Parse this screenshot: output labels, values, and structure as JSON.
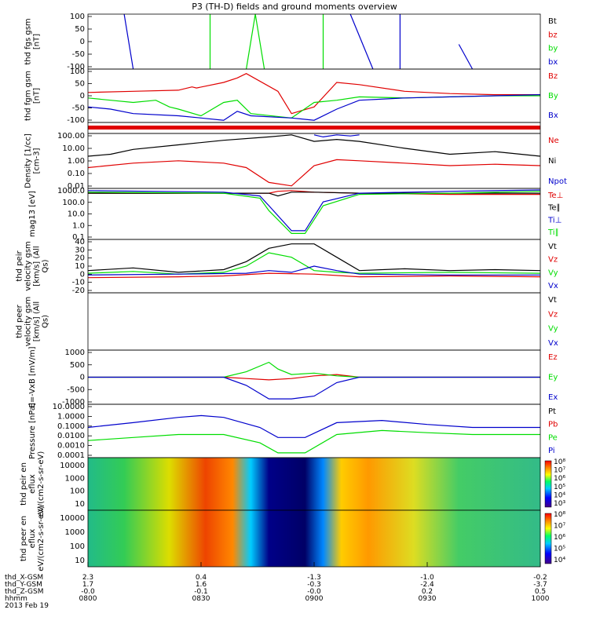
{
  "title": "P3 (TH-D) fields and ground moments overview",
  "colors": {
    "black": "#000000",
    "red": "#e00000",
    "green": "#00dd00",
    "blue": "#0000cc"
  },
  "chart_data": {
    "type": "line",
    "x_time_labels": [
      "0800",
      "0830",
      "0900",
      "0930",
      "1000"
    ],
    "panels": [
      {
        "ylabel": "thd fgs gsm [nT]",
        "ylim": [
          -100,
          100
        ],
        "ticks": [
          "100",
          "50",
          "0",
          "-50",
          "-100"
        ],
        "legend": [
          {
            "label": "Bt",
            "color": "black"
          },
          {
            "label": "bz",
            "color": "red"
          },
          {
            "label": "by",
            "color": "green"
          },
          {
            "label": "bx",
            "color": "blue"
          }
        ],
        "series": [
          {
            "color": "blue",
            "x": [
              0.08,
              0.1
            ],
            "y": [
              100,
              -100
            ]
          },
          {
            "color": "green",
            "x": [
              0.27,
              0.27
            ],
            "y": [
              -100,
              100
            ]
          },
          {
            "color": "green",
            "x": [
              0.35,
              0.37,
              0.39
            ],
            "y": [
              -100,
              100,
              -100
            ]
          },
          {
            "color": "green",
            "x": [
              0.52,
              0.52
            ],
            "y": [
              -100,
              100
            ]
          },
          {
            "color": "blue",
            "x": [
              0.58,
              0.63
            ],
            "y": [
              100,
              -100
            ]
          },
          {
            "color": "blue",
            "x": [
              0.82,
              0.85
            ],
            "y": [
              -10,
              -100
            ]
          },
          {
            "color": "blue",
            "x": [
              0.69,
              0.69
            ],
            "y": [
              -100,
              100
            ]
          }
        ]
      },
      {
        "ylabel": "thd fgm gsm [nT]",
        "ylim": [
          -120,
          120
        ],
        "ticks": [
          "100",
          "50",
          "0",
          "-50",
          "-100"
        ],
        "legend": [
          {
            "label": "Bz",
            "color": "red"
          },
          {
            "label": "By",
            "color": "green"
          },
          {
            "label": "Bx",
            "color": "blue"
          }
        ],
        "series": [
          {
            "color": "red",
            "x": [
              0,
              0.1,
              0.2,
              0.23,
              0.24,
              0.3,
              0.33,
              0.35,
              0.42,
              0.45,
              0.5,
              0.55,
              0.6,
              0.7,
              0.8,
              0.9,
              1
            ],
            "y": [
              15,
              20,
              25,
              40,
              35,
              60,
              80,
              100,
              20,
              -80,
              -50,
              60,
              50,
              20,
              10,
              5,
              5
            ]
          },
          {
            "color": "green",
            "x": [
              0,
              0.05,
              0.1,
              0.15,
              0.18,
              0.2,
              0.25,
              0.3,
              0.33,
              0.36,
              0.45,
              0.5,
              0.55,
              0.6,
              0.7,
              0.8,
              0.9,
              1
            ],
            "y": [
              -10,
              -20,
              -30,
              -20,
              -50,
              -60,
              -90,
              -30,
              -20,
              -80,
              -100,
              -30,
              -20,
              -5,
              -10,
              -5,
              0,
              0
            ]
          },
          {
            "color": "blue",
            "x": [
              0,
              0.05,
              0.1,
              0.2,
              0.25,
              0.3,
              0.33,
              0.36,
              0.45,
              0.5,
              0.55,
              0.6,
              0.7,
              0.8,
              0.9,
              1
            ],
            "y": [
              -50,
              -60,
              -80,
              -90,
              -100,
              -110,
              -70,
              -90,
              -100,
              -110,
              -60,
              -20,
              -10,
              -5,
              0,
              5
            ]
          }
        ]
      },
      {
        "ylabel": "",
        "ylim": [
          0,
          1
        ],
        "ticks": [],
        "legend": [],
        "series": []
      },
      {
        "ylabel": "Density [1/cc] [cm-3]",
        "ylim": [
          0.003,
          200
        ],
        "log": true,
        "ticks": [
          "100.00",
          "10.00",
          "1.00",
          "0.10",
          "0.01"
        ],
        "legend": [
          {
            "label": "Ne",
            "color": "red"
          },
          {
            "label": "Ni",
            "color": "black"
          },
          {
            "label": "Npot",
            "color": "blue"
          }
        ],
        "series": [
          {
            "color": "black",
            "x": [
              0,
              0.05,
              0.1,
              0.2,
              0.3,
              0.4,
              0.45,
              0.5,
              0.55,
              0.6,
              0.7,
              0.8,
              0.9,
              1
            ],
            "y": [
              2,
              3,
              8,
              20,
              50,
              100,
              150,
              40,
              60,
              40,
              10,
              3,
              5,
              2
            ]
          },
          {
            "color": "red",
            "x": [
              0,
              0.1,
              0.2,
              0.3,
              0.35,
              0.4,
              0.45,
              0.5,
              0.55,
              0.6,
              0.7,
              0.8,
              0.9,
              1
            ],
            "y": [
              0.2,
              0.5,
              0.8,
              0.5,
              0.2,
              0.01,
              0.005,
              0.3,
              1,
              0.8,
              0.5,
              0.3,
              0.4,
              0.3
            ]
          },
          {
            "color": "blue",
            "x": [
              0.5,
              0.52,
              0.55,
              0.58,
              0.6
            ],
            "y": [
              150,
              100,
              150,
              120,
              150
            ]
          }
        ]
      },
      {
        "ylabel": "mag13 [eV]",
        "ylim": [
          0.1,
          1200
        ],
        "log": true,
        "ticks": [
          "1000.0",
          "100.0",
          "10.0",
          "1.0",
          "0.1"
        ],
        "legend": [
          {
            "label": "Te⊥",
            "color": "red"
          },
          {
            "label": "Te∥",
            "color": "black"
          },
          {
            "label": "Ti⊥",
            "color": "blue"
          },
          {
            "label": "Ti∥",
            "color": "green"
          }
        ],
        "series": [
          {
            "color": "red",
            "x": [
              0,
              0.3,
              0.4,
              0.42,
              0.45,
              0.5,
              0.6,
              0.8,
              1
            ],
            "y": [
              500,
              500,
              500,
              700,
              800,
              600,
              500,
              400,
              400
            ]
          },
          {
            "color": "black",
            "x": [
              0,
              0.3,
              0.4,
              0.42,
              0.45,
              0.5,
              0.6,
              0.8,
              1
            ],
            "y": [
              500,
              500,
              500,
              300,
              600,
              600,
              500,
              500,
              500
            ]
          },
          {
            "color": "blue",
            "x": [
              0,
              0.3,
              0.38,
              0.4,
              0.45,
              0.48,
              0.52,
              0.6,
              0.8,
              1
            ],
            "y": [
              800,
              600,
              300,
              50,
              0.5,
              0.5,
              100,
              500,
              700,
              900
            ]
          },
          {
            "color": "green",
            "x": [
              0,
              0.3,
              0.38,
              0.4,
              0.45,
              0.48,
              0.52,
              0.6,
              0.8,
              1
            ],
            "y": [
              600,
              500,
              200,
              20,
              0.3,
              0.3,
              50,
              400,
              500,
              700
            ]
          }
        ]
      },
      {
        "ylabel": "thd peir velocity gsm [km/s] (All Qs)",
        "ylim": [
          -20,
          40
        ],
        "ticks": [
          "40",
          "30",
          "20",
          "10",
          "0",
          "-10",
          "-20"
        ],
        "legend": [
          {
            "label": "Vt",
            "color": "black"
          },
          {
            "label": "Vz",
            "color": "red"
          },
          {
            "label": "Vy",
            "color": "green"
          },
          {
            "label": "Vx",
            "color": "blue"
          }
        ],
        "series": [
          {
            "color": "black",
            "x": [
              0,
              0.1,
              0.2,
              0.3,
              0.35,
              0.4,
              0.45,
              0.5,
              0.55,
              0.6,
              0.7,
              0.8,
              0.9,
              1
            ],
            "y": [
              5,
              8,
              3,
              6,
              15,
              30,
              35,
              35,
              20,
              5,
              7,
              5,
              6,
              5
            ]
          },
          {
            "color": "red",
            "x": [
              0,
              0.2,
              0.3,
              0.4,
              0.5,
              0.6,
              0.8,
              1
            ],
            "y": [
              -3,
              -2,
              -1,
              2,
              1,
              -2,
              -1,
              -2
            ]
          },
          {
            "color": "green",
            "x": [
              0,
              0.1,
              0.2,
              0.3,
              0.35,
              0.4,
              0.45,
              0.5,
              0.55,
              0.6,
              0.8,
              1
            ],
            "y": [
              2,
              4,
              1,
              3,
              10,
              25,
              20,
              5,
              3,
              2,
              3,
              2
            ]
          },
          {
            "color": "blue",
            "x": [
              0,
              0.2,
              0.35,
              0.4,
              0.45,
              0.5,
              0.55,
              0.6,
              0.8,
              1
            ],
            "y": [
              0,
              1,
              2,
              5,
              3,
              10,
              5,
              1,
              0,
              0
            ]
          }
        ]
      },
      {
        "ylabel": "thd peer velocity gsm [km/s] (All Qs)",
        "ylim": [
          0,
          1
        ],
        "ticks": [],
        "legend": [
          {
            "label": "Vt",
            "color": "black"
          },
          {
            "label": "Vz",
            "color": "red"
          },
          {
            "label": "Vy",
            "color": "green"
          },
          {
            "label": "Vx",
            "color": "blue"
          }
        ],
        "series": []
      },
      {
        "ylabel": "E=-VxB [mV/m]",
        "ylim": [
          -1000,
          1000
        ],
        "ticks": [
          "1000",
          "500",
          "0",
          "-500",
          "-1000"
        ],
        "legend": [
          {
            "label": "Ez",
            "color": "red"
          },
          {
            "label": "Ey",
            "color": "green"
          },
          {
            "label": "Ex",
            "color": "blue"
          }
        ],
        "series": [
          {
            "color": "red",
            "x": [
              0,
              0.3,
              0.35,
              0.4,
              0.45,
              0.5,
              0.55,
              0.6,
              1
            ],
            "y": [
              0,
              0,
              -50,
              -100,
              -50,
              50,
              100,
              0,
              0
            ]
          },
          {
            "color": "green",
            "x": [
              0,
              0.3,
              0.35,
              0.4,
              0.42,
              0.45,
              0.5,
              0.55,
              0.6,
              1
            ],
            "y": [
              0,
              0,
              200,
              550,
              300,
              100,
              150,
              50,
              0,
              0
            ]
          },
          {
            "color": "blue",
            "x": [
              0,
              0.3,
              0.35,
              0.4,
              0.45,
              0.5,
              0.55,
              0.6,
              1
            ],
            "y": [
              0,
              0,
              -300,
              -800,
              -800,
              -700,
              -200,
              0,
              0
            ]
          }
        ]
      },
      {
        "ylabel": "Pressure [nPa]",
        "ylim": [
          0.0001,
          20
        ],
        "log": true,
        "ticks": [
          "10.0000",
          "1.0000",
          "0.1000",
          "0.0100",
          "0.0010",
          "0.0001"
        ],
        "legend": [
          {
            "label": "Pt",
            "color": "black"
          },
          {
            "label": "Pb",
            "color": "red"
          },
          {
            "label": "Pe",
            "color": "green"
          },
          {
            "label": "Pi",
            "color": "blue"
          }
        ],
        "series": [
          {
            "color": "blue",
            "x": [
              0,
              0.1,
              0.2,
              0.25,
              0.3,
              0.38,
              0.42,
              0.48,
              0.55,
              0.65,
              0.75,
              0.85,
              1
            ],
            "y": [
              0.1,
              0.3,
              1,
              1.5,
              1,
              0.1,
              0.01,
              0.01,
              0.3,
              0.5,
              0.2,
              0.1,
              0.1
            ]
          },
          {
            "color": "green",
            "x": [
              0,
              0.1,
              0.2,
              0.3,
              0.38,
              0.42,
              0.48,
              0.55,
              0.65,
              0.75,
              0.85,
              1
            ],
            "y": [
              0.005,
              0.01,
              0.02,
              0.02,
              0.003,
              0.0003,
              0.0003,
              0.02,
              0.05,
              0.03,
              0.02,
              0.02
            ]
          }
        ]
      },
      {
        "ylabel": "thd peir en eflux eV/(cm2-s-sr-eV)",
        "ytick_labels": [
          "10000",
          "1000",
          "100",
          "10"
        ],
        "colorbar_labels": [
          "10⁸",
          "10⁷",
          "10⁶",
          "10⁵",
          "10⁴",
          "10³"
        ],
        "spectrogram": true
      },
      {
        "ylabel": "thd peer en eflux eV/(cm2-s-sr-eV)",
        "ytick_labels": [
          "10000",
          "1000",
          "100",
          "10"
        ],
        "colorbar_labels": [
          "10⁸",
          "10⁷",
          "10⁶",
          "10⁵",
          "10⁴"
        ],
        "spectrogram": true
      }
    ],
    "ephemeris": {
      "labels": [
        "thd_X-GSM",
        "thd_Y-GSM",
        "thd_Z-GSM",
        "hhmm",
        "2013 Feb 19"
      ],
      "rows": [
        [
          "2.3",
          "0.4",
          "-1.3",
          "-1.0",
          "-0.2"
        ],
        [
          "1.7",
          "1.6",
          "-0.3",
          "-2.4",
          "-3.7"
        ],
        [
          "-0.0",
          "-0.1",
          "-0.0",
          "0.2",
          "0.5"
        ],
        [
          "0800",
          "0830",
          "0900",
          "0930",
          "1000"
        ]
      ]
    }
  }
}
